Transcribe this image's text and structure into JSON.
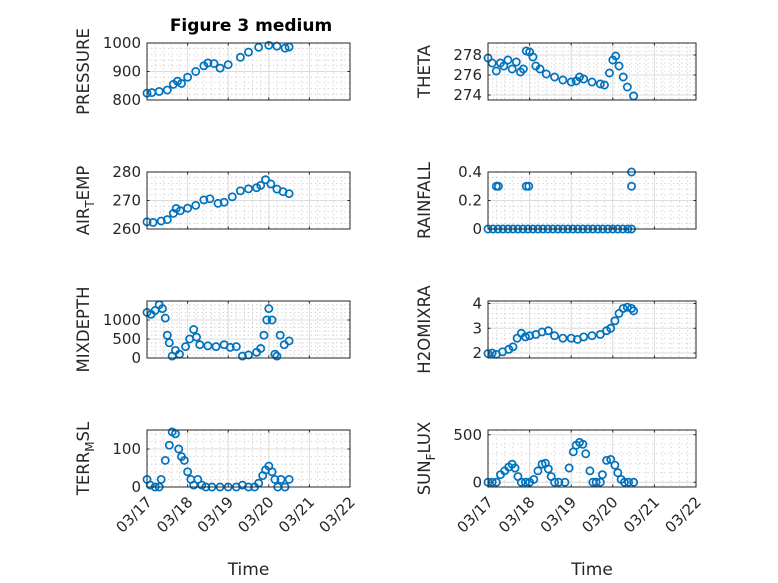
{
  "figure": {
    "title": "Figure 3 medium"
  },
  "chart_data": [
    {
      "id": "pressure",
      "type": "scatter",
      "ylabel": "PRESSURE",
      "ylabel_sub": "",
      "ylim": [
        800,
        1000
      ],
      "yticks": [
        800,
        900,
        1000
      ],
      "yticklabels": [
        "800",
        "900",
        "1000"
      ],
      "xlim": [
        0,
        5
      ],
      "xticks": [
        0,
        1,
        2,
        3,
        4,
        5
      ],
      "xticklabels": [
        "03/17",
        "03/18",
        "03/19",
        "03/20",
        "03/21",
        "03/22"
      ],
      "show_xticklabels": false,
      "xlabel": "",
      "grid": true,
      "points": [
        [
          0,
          824
        ],
        [
          0.12,
          826
        ],
        [
          0.3,
          830
        ],
        [
          0.5,
          835
        ],
        [
          0.65,
          855
        ],
        [
          0.75,
          866
        ],
        [
          0.85,
          858
        ],
        [
          1.0,
          880
        ],
        [
          1.2,
          900
        ],
        [
          1.4,
          920
        ],
        [
          1.5,
          930
        ],
        [
          1.65,
          928
        ],
        [
          1.8,
          912
        ],
        [
          2.0,
          924
        ],
        [
          2.3,
          950
        ],
        [
          2.5,
          968
        ],
        [
          2.75,
          985
        ],
        [
          3.0,
          992
        ],
        [
          3.2,
          989
        ],
        [
          3.4,
          982
        ],
        [
          3.5,
          986
        ]
      ]
    },
    {
      "id": "theta",
      "type": "scatter",
      "ylabel": "THETA",
      "ylabel_sub": "",
      "ylim": [
        273.5,
        279.2
      ],
      "yticks": [
        274,
        276,
        278
      ],
      "yticklabels": [
        "274",
        "276",
        "278"
      ],
      "xlim": [
        0,
        5
      ],
      "xticks": [
        0,
        1,
        2,
        3,
        4,
        5
      ],
      "xticklabels": [
        "03/17",
        "03/18",
        "03/19",
        "03/20",
        "03/21",
        "03/22"
      ],
      "show_xticklabels": false,
      "xlabel": "",
      "grid": true,
      "points": [
        [
          0,
          277.7
        ],
        [
          0.1,
          277.2
        ],
        [
          0.2,
          276.4
        ],
        [
          0.3,
          277.2
        ],
        [
          0.38,
          276.9
        ],
        [
          0.48,
          277.5
        ],
        [
          0.58,
          276.6
        ],
        [
          0.68,
          277.3
        ],
        [
          0.78,
          276.3
        ],
        [
          0.85,
          276.6
        ],
        [
          0.92,
          278.4
        ],
        [
          1.0,
          278.3
        ],
        [
          1.08,
          277.8
        ],
        [
          1.15,
          276.9
        ],
        [
          1.25,
          276.6
        ],
        [
          1.4,
          276.1
        ],
        [
          1.6,
          275.8
        ],
        [
          1.8,
          275.5
        ],
        [
          2.0,
          275.3
        ],
        [
          2.12,
          275.4
        ],
        [
          2.2,
          275.8
        ],
        [
          2.3,
          275.6
        ],
        [
          2.5,
          275.3
        ],
        [
          2.7,
          275.1
        ],
        [
          2.8,
          275.0
        ],
        [
          2.92,
          276.2
        ],
        [
          3.0,
          277.5
        ],
        [
          3.07,
          277.9
        ],
        [
          3.15,
          276.9
        ],
        [
          3.25,
          275.8
        ],
        [
          3.35,
          274.8
        ],
        [
          3.5,
          273.9
        ]
      ]
    },
    {
      "id": "air_temp",
      "type": "scatter",
      "ylabel": "AIR",
      "ylabel_sub": "T",
      "ylabel_rest": "EMP",
      "ylim": [
        260,
        280
      ],
      "yticks": [
        260,
        270,
        280
      ],
      "yticklabels": [
        "260",
        "270",
        "280"
      ],
      "xlim": [
        0,
        5
      ],
      "xticks": [
        0,
        1,
        2,
        3,
        4,
        5
      ],
      "xticklabels": [
        "03/17",
        "03/18",
        "03/19",
        "03/20",
        "03/21",
        "03/22"
      ],
      "show_xticklabels": false,
      "xlabel": "",
      "grid": true,
      "points": [
        [
          0,
          262.5
        ],
        [
          0.15,
          262.3
        ],
        [
          0.35,
          262.8
        ],
        [
          0.5,
          263.3
        ],
        [
          0.65,
          265.5
        ],
        [
          0.72,
          267.2
        ],
        [
          0.82,
          266.4
        ],
        [
          1.0,
          267.3
        ],
        [
          1.2,
          268.3
        ],
        [
          1.4,
          270.2
        ],
        [
          1.55,
          270.6
        ],
        [
          1.75,
          269.0
        ],
        [
          1.9,
          269.4
        ],
        [
          2.1,
          271.3
        ],
        [
          2.3,
          273.4
        ],
        [
          2.5,
          274.1
        ],
        [
          2.7,
          274.5
        ],
        [
          2.8,
          275.3
        ],
        [
          2.92,
          277.3
        ],
        [
          3.05,
          275.8
        ],
        [
          3.2,
          274.0
        ],
        [
          3.35,
          273.1
        ],
        [
          3.5,
          272.4
        ]
      ]
    },
    {
      "id": "rainfall",
      "type": "scatter",
      "ylabel": "RAINFALL",
      "ylabel_sub": "",
      "ylim": [
        0,
        0.4
      ],
      "yticks": [
        0,
        0.2,
        0.4
      ],
      "yticklabels": [
        "0",
        "0.2",
        "0.4"
      ],
      "xlim": [
        0,
        5
      ],
      "xticks": [
        0,
        1,
        2,
        3,
        4,
        5
      ],
      "xticklabels": [
        "03/17",
        "03/18",
        "03/19",
        "03/20",
        "03/21",
        "03/22"
      ],
      "show_xticklabels": false,
      "xlabel": "",
      "grid": true,
      "points": [
        [
          0,
          0
        ],
        [
          0.12,
          0
        ],
        [
          0.24,
          0
        ],
        [
          0.36,
          0
        ],
        [
          0.48,
          0
        ],
        [
          0.6,
          0
        ],
        [
          0.72,
          0
        ],
        [
          0.84,
          0
        ],
        [
          0.96,
          0
        ],
        [
          1.08,
          0
        ],
        [
          1.2,
          0
        ],
        [
          1.32,
          0
        ],
        [
          1.44,
          0
        ],
        [
          1.56,
          0
        ],
        [
          1.68,
          0
        ],
        [
          1.8,
          0
        ],
        [
          1.92,
          0
        ],
        [
          2.04,
          0
        ],
        [
          2.16,
          0
        ],
        [
          2.28,
          0
        ],
        [
          2.4,
          0
        ],
        [
          2.52,
          0
        ],
        [
          2.64,
          0
        ],
        [
          2.76,
          0
        ],
        [
          2.88,
          0
        ],
        [
          3.0,
          0
        ],
        [
          3.12,
          0
        ],
        [
          3.24,
          0
        ],
        [
          3.36,
          0
        ],
        [
          3.45,
          0
        ],
        [
          0.2,
          0.3
        ],
        [
          0.25,
          0.3
        ],
        [
          0.92,
          0.3
        ],
        [
          0.98,
          0.3
        ],
        [
          3.45,
          0.3
        ],
        [
          3.45,
          0.4
        ]
      ]
    },
    {
      "id": "mixdepth",
      "type": "scatter",
      "ylabel": "MIXDEPTH",
      "ylabel_sub": "",
      "ylim": [
        0,
        1500
      ],
      "yticks": [
        0,
        500,
        1000
      ],
      "yticklabels": [
        "0",
        "500",
        "1000"
      ],
      "xlim": [
        0,
        5
      ],
      "xticks": [
        0,
        1,
        2,
        3,
        4,
        5
      ],
      "xticklabels": [
        "03/17",
        "03/18",
        "03/19",
        "03/20",
        "03/21",
        "03/22"
      ],
      "show_xticklabels": false,
      "xlabel": "",
      "grid": true,
      "points": [
        [
          0,
          1200
        ],
        [
          0.1,
          1150
        ],
        [
          0.2,
          1250
        ],
        [
          0.3,
          1400
        ],
        [
          0.38,
          1300
        ],
        [
          0.45,
          1050
        ],
        [
          0.5,
          600
        ],
        [
          0.55,
          400
        ],
        [
          0.62,
          50
        ],
        [
          0.7,
          200
        ],
        [
          0.8,
          100
        ],
        [
          0.95,
          300
        ],
        [
          1.05,
          500
        ],
        [
          1.15,
          750
        ],
        [
          1.22,
          550
        ],
        [
          1.3,
          350
        ],
        [
          1.5,
          320
        ],
        [
          1.7,
          300
        ],
        [
          1.9,
          350
        ],
        [
          2.05,
          280
        ],
        [
          2.2,
          300
        ],
        [
          2.35,
          50
        ],
        [
          2.5,
          80
        ],
        [
          2.7,
          150
        ],
        [
          2.8,
          250
        ],
        [
          2.88,
          600
        ],
        [
          2.95,
          1000
        ],
        [
          3.0,
          1300
        ],
        [
          3.08,
          1000
        ],
        [
          3.15,
          100
        ],
        [
          3.2,
          50
        ],
        [
          3.28,
          600
        ],
        [
          3.38,
          350
        ],
        [
          3.5,
          450
        ]
      ]
    },
    {
      "id": "h2omixra",
      "type": "scatter",
      "ylabel": "H2OMIXRA",
      "ylabel_sub": "",
      "ylim": [
        1.8,
        4.1
      ],
      "yticks": [
        2,
        3,
        4
      ],
      "yticklabels": [
        "2",
        "3",
        "4"
      ],
      "xlim": [
        0,
        5
      ],
      "xticks": [
        0,
        1,
        2,
        3,
        4,
        5
      ],
      "xticklabels": [
        "03/17",
        "03/18",
        "03/19",
        "03/20",
        "03/21",
        "03/22"
      ],
      "show_xticklabels": false,
      "xlabel": "",
      "grid": true,
      "points": [
        [
          0,
          1.98
        ],
        [
          0.1,
          2.0
        ],
        [
          0.2,
          1.95
        ],
        [
          0.35,
          2.05
        ],
        [
          0.5,
          2.15
        ],
        [
          0.6,
          2.25
        ],
        [
          0.7,
          2.6
        ],
        [
          0.8,
          2.8
        ],
        [
          0.9,
          2.65
        ],
        [
          1.0,
          2.7
        ],
        [
          1.15,
          2.75
        ],
        [
          1.3,
          2.85
        ],
        [
          1.45,
          2.9
        ],
        [
          1.6,
          2.7
        ],
        [
          1.8,
          2.6
        ],
        [
          2.0,
          2.6
        ],
        [
          2.15,
          2.55
        ],
        [
          2.3,
          2.65
        ],
        [
          2.5,
          2.7
        ],
        [
          2.7,
          2.75
        ],
        [
          2.85,
          2.9
        ],
        [
          2.95,
          3.0
        ],
        [
          3.05,
          3.3
        ],
        [
          3.15,
          3.6
        ],
        [
          3.25,
          3.8
        ],
        [
          3.35,
          3.85
        ],
        [
          3.45,
          3.8
        ],
        [
          3.5,
          3.7
        ]
      ]
    },
    {
      "id": "terr_msl",
      "type": "scatter",
      "ylabel": "TERR",
      "ylabel_sub": "M",
      "ylabel_rest": "SL",
      "ylim": [
        0,
        150
      ],
      "yticks": [
        0,
        100
      ],
      "yticklabels": [
        "0",
        "100"
      ],
      "xlim": [
        0,
        5
      ],
      "xticks": [
        0,
        1,
        2,
        3,
        4,
        5
      ],
      "xticklabels": [
        "03/17",
        "03/18",
        "03/19",
        "03/20",
        "03/21",
        "03/22"
      ],
      "show_xticklabels": true,
      "xlabel": "Time",
      "grid": true,
      "points": [
        [
          0,
          20
        ],
        [
          0.08,
          5
        ],
        [
          0.2,
          0
        ],
        [
          0.3,
          0
        ],
        [
          0.35,
          20
        ],
        [
          0.45,
          70
        ],
        [
          0.55,
          110
        ],
        [
          0.62,
          145
        ],
        [
          0.7,
          140
        ],
        [
          0.78,
          100
        ],
        [
          0.85,
          80
        ],
        [
          0.92,
          70
        ],
        [
          1.0,
          40
        ],
        [
          1.08,
          20
        ],
        [
          1.15,
          5
        ],
        [
          1.25,
          20
        ],
        [
          1.35,
          5
        ],
        [
          1.45,
          0
        ],
        [
          1.6,
          0
        ],
        [
          1.8,
          0
        ],
        [
          2.0,
          0
        ],
        [
          2.2,
          0
        ],
        [
          2.35,
          5
        ],
        [
          2.5,
          0
        ],
        [
          2.65,
          0
        ],
        [
          2.75,
          10
        ],
        [
          2.85,
          30
        ],
        [
          2.92,
          45
        ],
        [
          3.0,
          55
        ],
        [
          3.08,
          40
        ],
        [
          3.15,
          20
        ],
        [
          3.22,
          0
        ],
        [
          3.3,
          20
        ],
        [
          3.4,
          0
        ],
        [
          3.5,
          20
        ]
      ]
    },
    {
      "id": "sun_flux",
      "type": "scatter",
      "ylabel": "SUN",
      "ylabel_sub": "F",
      "ylabel_rest": "LUX",
      "ylim": [
        -50,
        550
      ],
      "yticks": [
        0,
        500
      ],
      "yticklabels": [
        "0",
        "500"
      ],
      "xlim": [
        0,
        5
      ],
      "xticks": [
        0,
        1,
        2,
        3,
        4,
        5
      ],
      "xticklabels": [
        "03/17",
        "03/18",
        "03/19",
        "03/20",
        "03/21",
        "03/22"
      ],
      "show_xticklabels": true,
      "xlabel": "Time",
      "grid": true,
      "points": [
        [
          0,
          0
        ],
        [
          0.1,
          0
        ],
        [
          0.2,
          0
        ],
        [
          0.3,
          80
        ],
        [
          0.4,
          120
        ],
        [
          0.5,
          160
        ],
        [
          0.58,
          190
        ],
        [
          0.65,
          150
        ],
        [
          0.72,
          60
        ],
        [
          0.8,
          0
        ],
        [
          0.9,
          0
        ],
        [
          1.0,
          0
        ],
        [
          1.1,
          30
        ],
        [
          1.2,
          120
        ],
        [
          1.3,
          190
        ],
        [
          1.38,
          200
        ],
        [
          1.45,
          140
        ],
        [
          1.52,
          60
        ],
        [
          1.6,
          0
        ],
        [
          1.7,
          0
        ],
        [
          1.85,
          0
        ],
        [
          1.95,
          150
        ],
        [
          2.05,
          320
        ],
        [
          2.12,
          390
        ],
        [
          2.2,
          420
        ],
        [
          2.28,
          400
        ],
        [
          2.35,
          300
        ],
        [
          2.45,
          120
        ],
        [
          2.52,
          0
        ],
        [
          2.6,
          0
        ],
        [
          2.7,
          0
        ],
        [
          2.75,
          80
        ],
        [
          2.85,
          230
        ],
        [
          2.95,
          240
        ],
        [
          3.05,
          180
        ],
        [
          3.12,
          100
        ],
        [
          3.2,
          30
        ],
        [
          3.28,
          0
        ],
        [
          3.38,
          0
        ],
        [
          3.5,
          0
        ]
      ]
    }
  ]
}
